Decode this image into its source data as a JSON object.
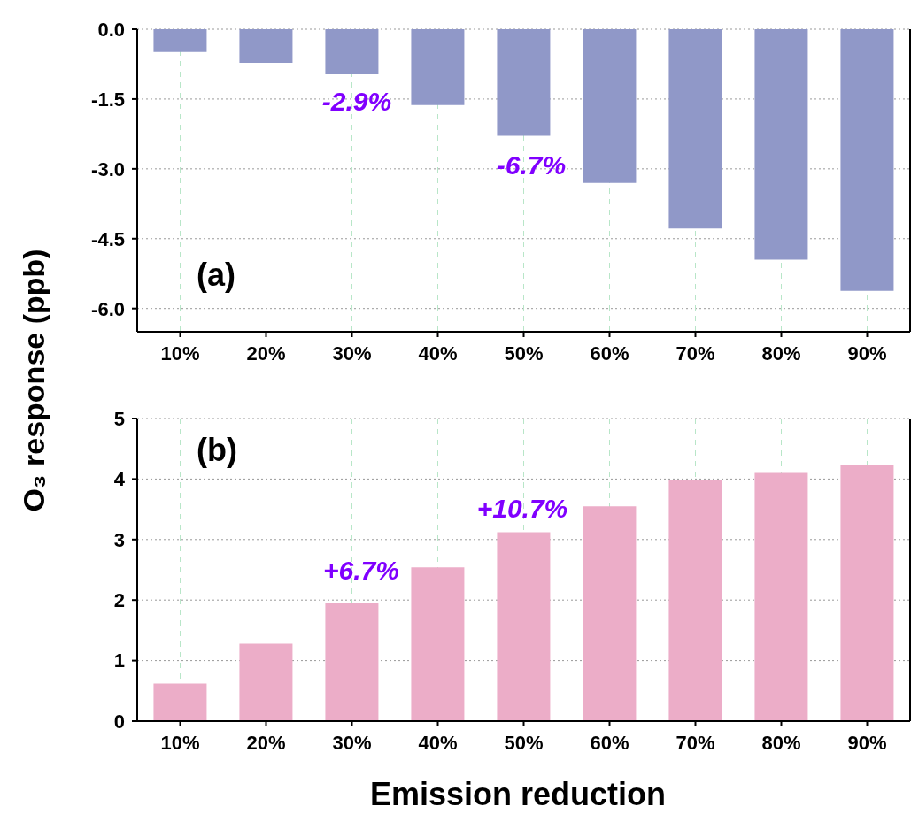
{
  "chart_data": [
    {
      "type": "bar",
      "title": "(a)",
      "ylabel": "O₃ response (ppb)",
      "categories": [
        "10%",
        "20%",
        "30%",
        "40%",
        "50%",
        "60%",
        "70%",
        "80%",
        "90%"
      ],
      "values": [
        -0.49,
        -0.72,
        -0.97,
        -1.63,
        -2.29,
        -3.3,
        -4.28,
        -4.95,
        -5.62
      ],
      "color": "#9098c8",
      "ylim": [
        -6.5,
        0
      ],
      "yticks": [
        {
          "value": -6,
          "label": "-6.0"
        },
        -4.5,
        {
          "value": -3,
          "label": "-3.0"
        },
        -1.5,
        {
          "value": 0,
          "label": "0.0"
        }
      ],
      "grid": true,
      "annotations": [
        "-2.9%",
        "-6.7%"
      ]
    },
    {
      "type": "bar",
      "title": "(b)",
      "xlabel": "Emission reduction",
      "categories": [
        "10%",
        "20%",
        "30%",
        "40%",
        "50%",
        "60%",
        "70%",
        "80%",
        "90%"
      ],
      "values": [
        0.62,
        1.28,
        1.96,
        2.54,
        3.12,
        3.55,
        3.98,
        4.1,
        4.24
      ],
      "color": "#ecadc8",
      "ylim": [
        0,
        5
      ],
      "yticks": [
        0,
        1,
        2,
        3,
        4,
        5
      ],
      "grid": true,
      "annotations": [
        "+6.7%",
        "+10.7%"
      ]
    }
  ]
}
